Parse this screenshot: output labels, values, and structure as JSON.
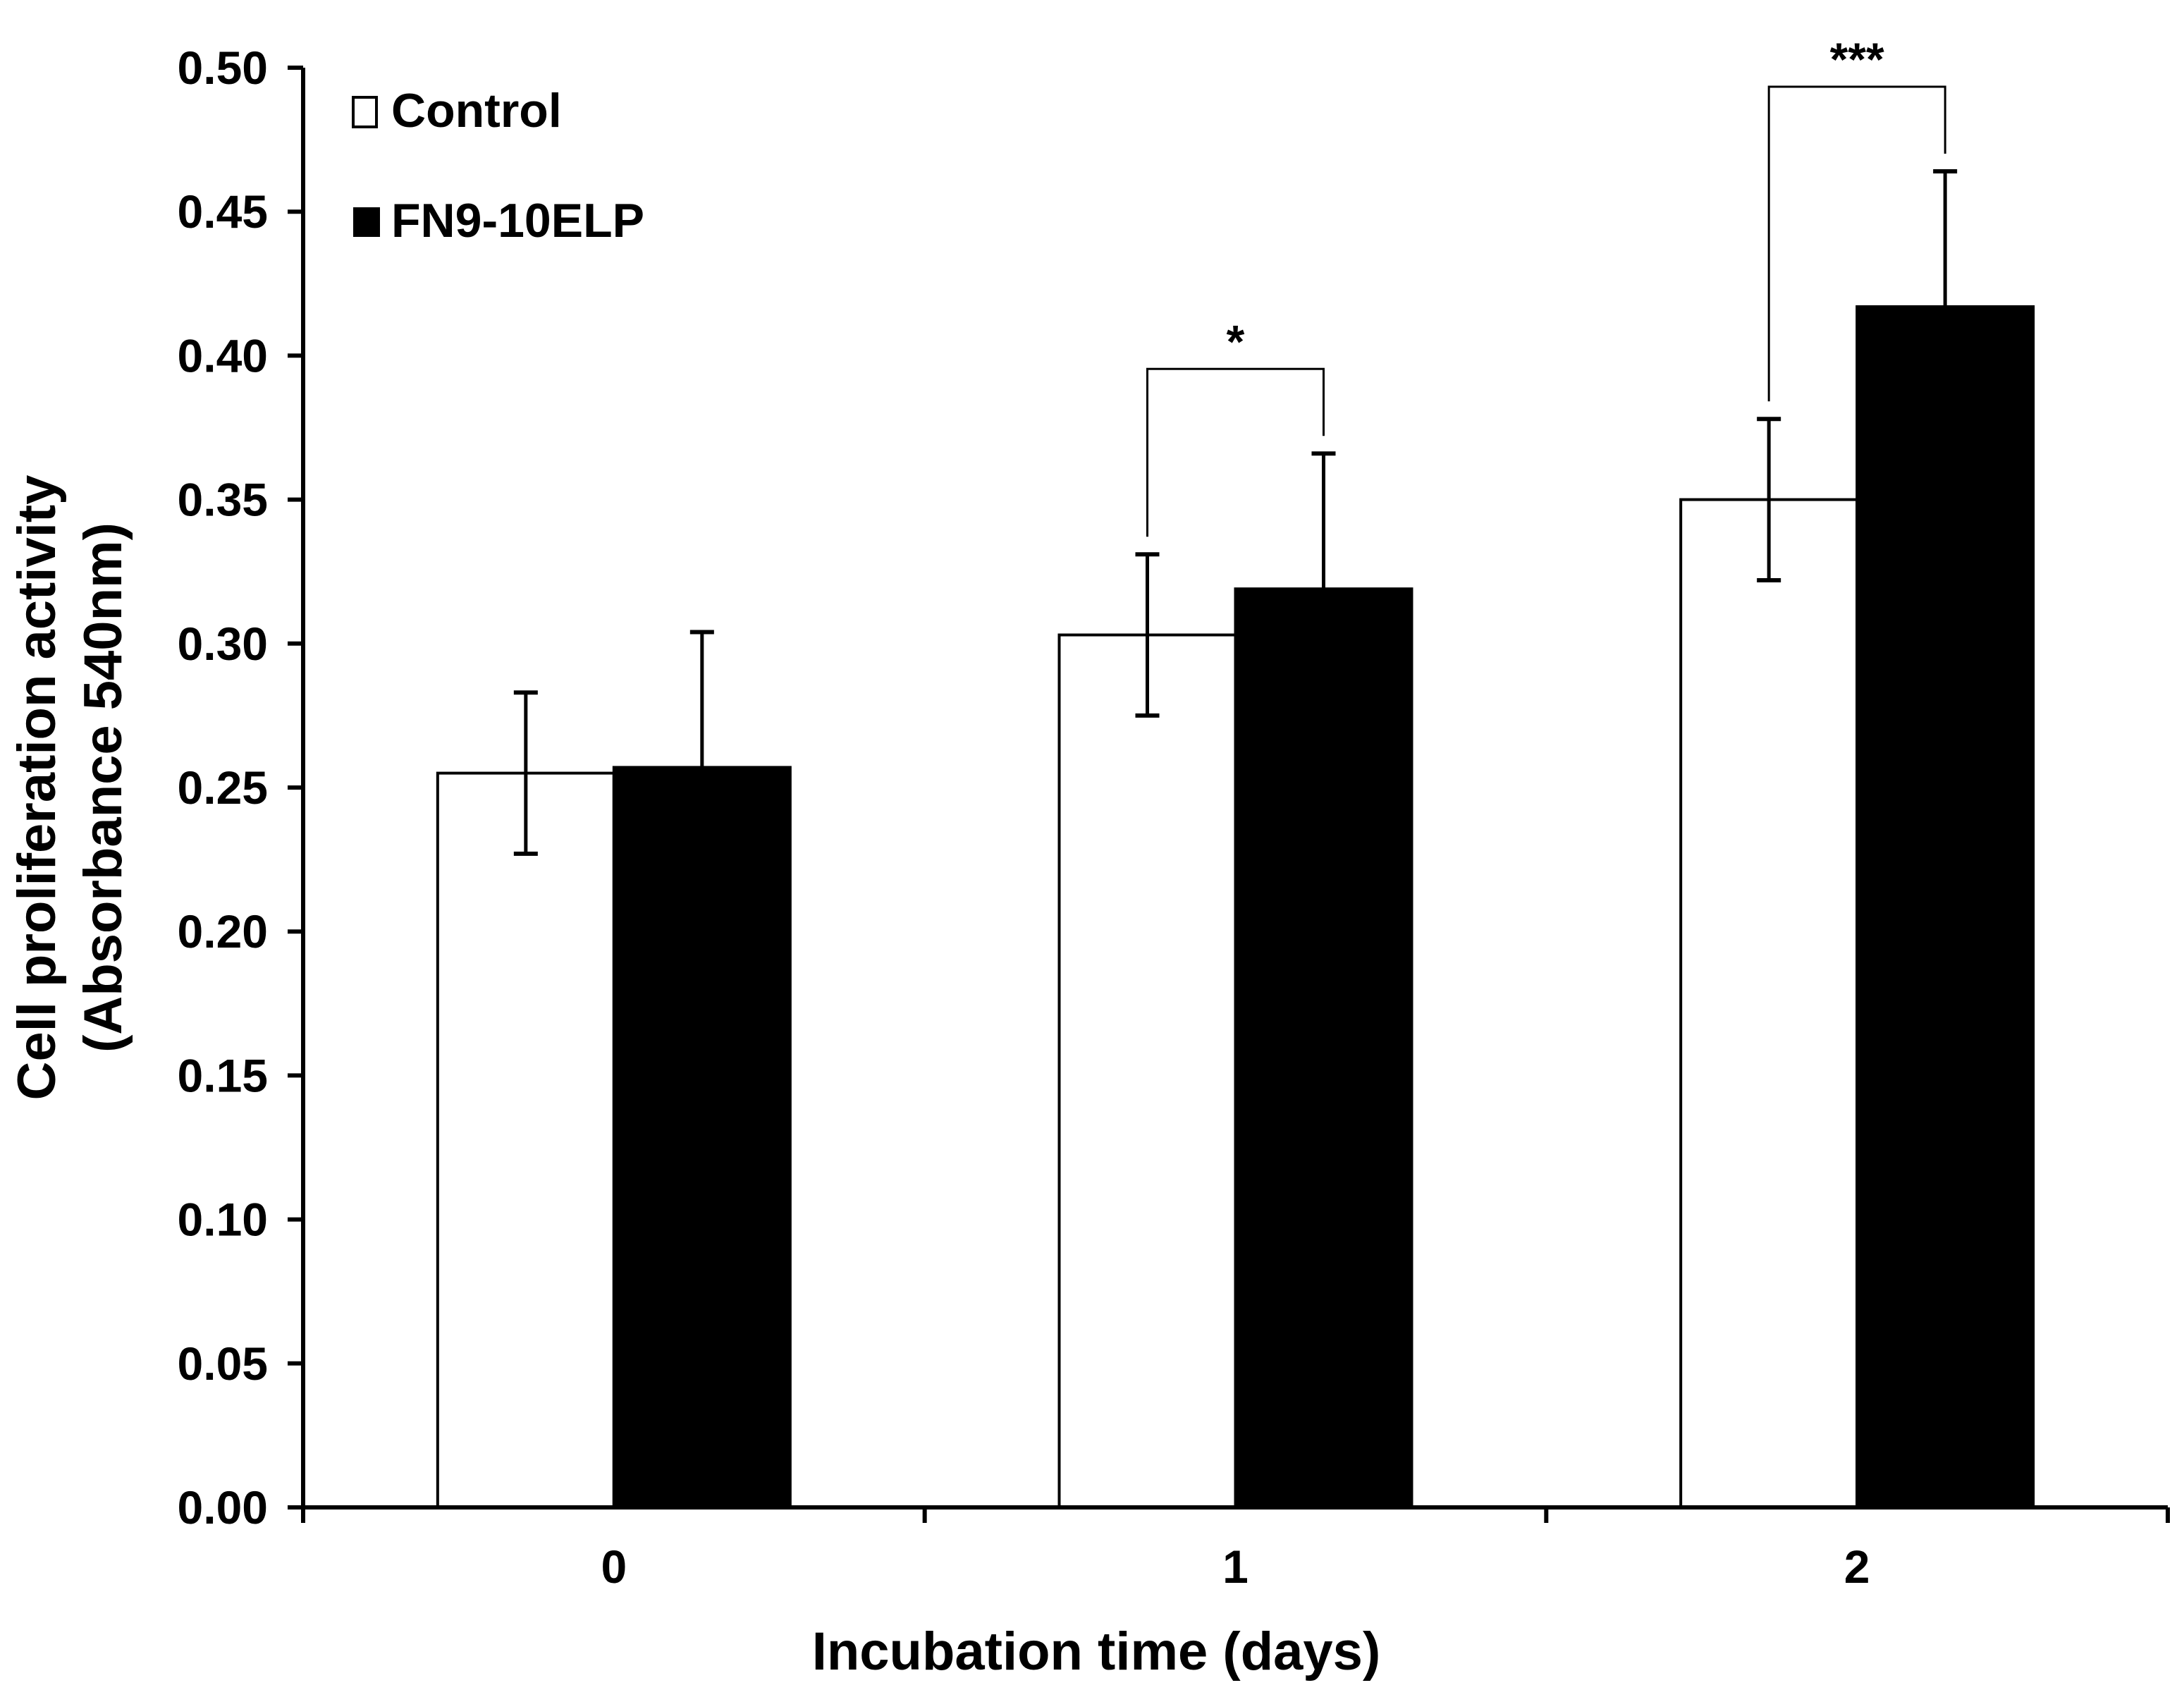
{
  "chart_data": {
    "type": "bar",
    "title": "",
    "xlabel": "Incubation time (days)",
    "ylabel_line1": "Cell proliferation activity",
    "ylabel_line2": "(Absorbance 540nm)",
    "categories": [
      "0",
      "1",
      "2"
    ],
    "ylim": [
      0,
      0.5
    ],
    "yticks": [
      "0.00",
      "0.05",
      "0.10",
      "0.15",
      "0.20",
      "0.25",
      "0.30",
      "0.35",
      "0.40",
      "0.45",
      "0.50"
    ],
    "series": [
      {
        "name": "Control",
        "color": "#ffffff",
        "edge": "#000000",
        "values": [
          0.255,
          0.303,
          0.35
        ],
        "errors": [
          0.028,
          0.028,
          0.028
        ]
      },
      {
        "name": "FN9-10ELP",
        "color": "#000000",
        "edge": "#000000",
        "values": [
          0.257,
          0.319,
          0.417
        ],
        "errors": [
          0.047,
          0.047,
          0.047
        ]
      }
    ],
    "legend": [
      {
        "label": "Control",
        "marker": "□"
      },
      {
        "label": "FN9-10ELP",
        "marker": "■"
      }
    ],
    "legend_position": "top-left",
    "significance": [
      {
        "category_index": 1,
        "label": "*"
      },
      {
        "category_index": 2,
        "label": "***"
      }
    ],
    "grid": false
  }
}
